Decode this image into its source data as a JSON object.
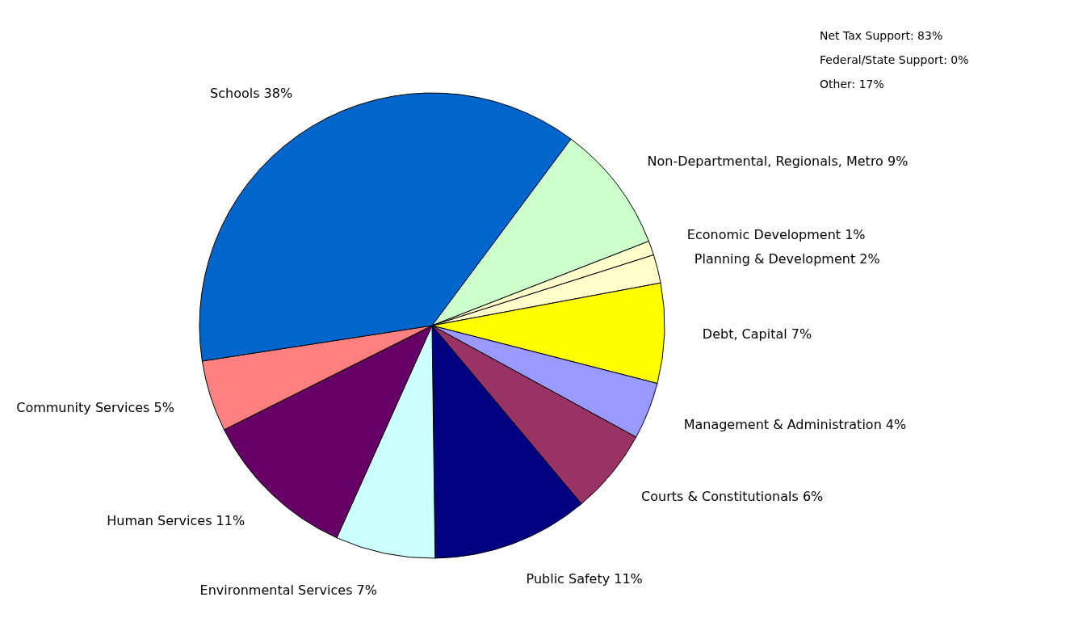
{
  "chart_data": {
    "type": "pie",
    "categories": [
      "Non-Departmental, Regionals, Metro",
      "Economic Development",
      "Planning & Development",
      "Debt, Capital",
      "Management & Administration",
      "Courts & Constitutionals",
      "Public Safety",
      "Environmental Services",
      "Human Services",
      "Community Services",
      "Schools"
    ],
    "values": [
      9,
      1,
      2,
      7,
      4,
      6,
      11,
      7,
      11,
      5,
      38
    ],
    "value_labels": [
      "9%",
      "1%",
      "2%",
      "7%",
      "4%",
      "6%",
      "11%",
      "7%",
      "11%",
      "5%",
      "38%"
    ],
    "colors": [
      "#ccffcc",
      "#ffffcc",
      "#ffffcc",
      "#ffff00",
      "#9999ff",
      "#993366",
      "#000080",
      "#ccffff",
      "#660066",
      "#ff8080",
      "#0066cc"
    ],
    "annotations": [
      "Net Tax Support: 83%",
      "Federal/State Support: 0%",
      "Other: 17%"
    ]
  }
}
